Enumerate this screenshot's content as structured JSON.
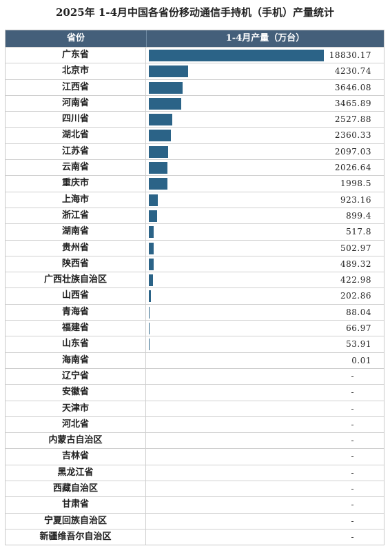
{
  "chart_data": {
    "type": "bar",
    "title": "2025年 1-4月中国各省份移动通信手持机（手机）产量统计",
    "header": {
      "province": "省份",
      "value": "1-4月产量（万台）"
    },
    "categories": [
      "广东省",
      "北京市",
      "江西省",
      "河南省",
      "四川省",
      "湖北省",
      "江苏省",
      "云南省",
      "重庆市",
      "上海市",
      "浙江省",
      "湖南省",
      "贵州省",
      "陕西省",
      "广西壮族自治区",
      "山西省",
      "青海省",
      "福建省",
      "山东省",
      "海南省",
      "辽宁省",
      "安徽省",
      "天津市",
      "河北省",
      "内蒙古自治区",
      "吉林省",
      "黑龙江省",
      "西藏自治区",
      "甘肃省",
      "宁夏回族自治区",
      "新疆维吾尔自治区"
    ],
    "values": [
      18830.17,
      4230.74,
      3646.08,
      3465.89,
      2527.88,
      2360.33,
      2097.03,
      2026.64,
      1998.5,
      923.16,
      899.4,
      517.8,
      502.97,
      489.32,
      422.98,
      202.86,
      88.04,
      66.97,
      53.91,
      0.01,
      null,
      null,
      null,
      null,
      null,
      null,
      null,
      null,
      null,
      null,
      null
    ],
    "labels": [
      "18830.17",
      "4230.74",
      "3646.08",
      "3465.89",
      "2527.88",
      "2360.33",
      "2097.03",
      "2026.64",
      "1998.5",
      "923.16",
      "899.4",
      "517.8",
      "502.97",
      "489.32",
      "422.98",
      "202.86",
      "88.04",
      "66.97",
      "53.91",
      "0.01",
      "-",
      "-",
      "-",
      "-",
      "-",
      "-",
      "-",
      "-",
      "-",
      "-",
      "-"
    ],
    "bar_color": "#2b6387",
    "header_color": "#445f7a"
  }
}
